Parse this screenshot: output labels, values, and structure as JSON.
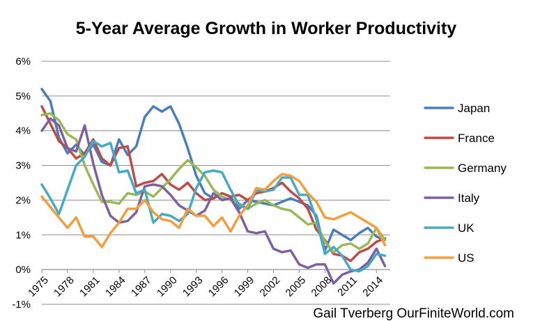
{
  "chart_data": {
    "type": "line",
    "title": "5-Year Average Growth in Worker Productivity",
    "credit": "Gail Tverberg OurFiniteWorld.com",
    "x": [
      1975,
      1976,
      1977,
      1978,
      1979,
      1980,
      1981,
      1982,
      1983,
      1984,
      1985,
      1986,
      1987,
      1988,
      1989,
      1990,
      1991,
      1992,
      1993,
      1994,
      1995,
      1996,
      1997,
      1998,
      1999,
      2000,
      2001,
      2002,
      2003,
      2004,
      2005,
      2006,
      2007,
      2008,
      2009,
      2010,
      2011,
      2012,
      2013,
      2014,
      2015
    ],
    "x_ticks": [
      1975,
      1978,
      1981,
      1984,
      1987,
      1990,
      1993,
      1996,
      1999,
      2002,
      2005,
      2008,
      2011,
      2014
    ],
    "x_tick_labels": [
      "1975",
      "1978",
      "1981",
      "1984",
      "1987",
      "1990",
      "1993",
      "1996",
      "1999",
      "2002",
      "2005",
      "2008",
      "2011",
      "2014"
    ],
    "xlim": [
      1975,
      2015.6
    ],
    "ylim": [
      -1,
      6
    ],
    "y_ticks": [
      -1,
      0,
      1,
      2,
      3,
      4,
      5,
      6
    ],
    "y_tick_labels": [
      "-1%",
      "0%",
      "1%",
      "2%",
      "3%",
      "4%",
      "5%",
      "6%"
    ],
    "grid": "horizontal",
    "legend_position": "right",
    "series": [
      {
        "name": "Japan",
        "color": "#4a7ebb",
        "values": [
          5.2,
          4.85,
          3.8,
          3.35,
          3.6,
          3.3,
          3.6,
          3.1,
          3.0,
          3.75,
          3.3,
          3.55,
          4.4,
          4.7,
          4.55,
          4.7,
          4.2,
          3.5,
          2.7,
          2.2,
          2.05,
          2.2,
          2.1,
          1.75,
          2.0,
          1.95,
          1.9,
          1.85,
          1.95,
          2.05,
          1.95,
          1.85,
          1.55,
          0.55,
          1.15,
          1.0,
          0.85,
          1.05,
          1.2,
          0.95,
          0.85
        ]
      },
      {
        "name": "France",
        "color": "#be4b48",
        "values": [
          4.7,
          4.2,
          3.7,
          3.5,
          3.2,
          3.35,
          3.75,
          3.2,
          3.0,
          3.5,
          3.55,
          2.4,
          2.5,
          2.55,
          2.75,
          2.45,
          2.3,
          2.5,
          2.2,
          2.0,
          2.05,
          2.2,
          2.1,
          2.15,
          2.0,
          2.2,
          2.25,
          2.35,
          2.5,
          2.25,
          2.05,
          1.75,
          1.15,
          0.85,
          0.45,
          0.4,
          0.25,
          0.5,
          0.6,
          0.8,
          0.9
        ]
      },
      {
        "name": "Germany",
        "color": "#98b954",
        "values": [
          4.45,
          4.5,
          4.3,
          3.9,
          3.75,
          3.0,
          2.45,
          1.95,
          1.95,
          1.9,
          2.2,
          2.15,
          2.25,
          2.1,
          2.35,
          2.6,
          2.9,
          3.15,
          2.95,
          2.7,
          2.3,
          2.1,
          2.0,
          1.9,
          1.75,
          1.9,
          2.0,
          1.85,
          1.75,
          1.7,
          1.5,
          1.3,
          1.35,
          0.8,
          0.5,
          0.7,
          0.75,
          0.6,
          0.75,
          1.2,
          0.85
        ]
      },
      {
        "name": "Italy",
        "color": "#7d60a0",
        "values": [
          4.0,
          4.35,
          4.15,
          3.5,
          3.4,
          4.15,
          3.05,
          2.15,
          1.55,
          1.35,
          1.4,
          1.65,
          2.4,
          2.45,
          2.4,
          2.15,
          1.85,
          1.7,
          1.55,
          1.7,
          2.2,
          2.0,
          2.05,
          1.65,
          1.1,
          1.05,
          1.1,
          0.6,
          0.5,
          0.55,
          0.15,
          0.05,
          0.15,
          0.15,
          -0.4,
          -0.15,
          -0.05,
          0.0,
          0.2,
          0.6,
          0.1
        ]
      },
      {
        "name": "UK",
        "color": "#46aac5",
        "values": [
          2.45,
          2.05,
          1.6,
          2.3,
          3.0,
          3.25,
          3.7,
          3.55,
          3.65,
          2.8,
          2.85,
          2.2,
          2.3,
          1.35,
          1.6,
          1.55,
          1.4,
          1.6,
          2.35,
          2.8,
          2.85,
          2.8,
          2.3,
          1.85,
          1.75,
          2.3,
          2.25,
          2.3,
          2.65,
          2.65,
          2.15,
          2.15,
          1.45,
          0.45,
          0.65,
          0.4,
          0.0,
          -0.05,
          0.1,
          0.45,
          0.4
        ]
      },
      {
        "name": "US",
        "color": "#f59d3d",
        "values": [
          2.1,
          1.8,
          1.5,
          1.2,
          1.5,
          0.95,
          0.95,
          0.65,
          1.05,
          1.35,
          1.75,
          1.75,
          2.0,
          1.65,
          1.45,
          1.4,
          1.2,
          1.75,
          1.55,
          1.55,
          1.25,
          1.5,
          1.1,
          1.55,
          1.85,
          2.35,
          2.3,
          2.55,
          2.75,
          2.7,
          2.55,
          2.2,
          1.95,
          1.5,
          1.45,
          1.55,
          1.65,
          1.5,
          1.35,
          1.2,
          0.7
        ]
      }
    ]
  }
}
